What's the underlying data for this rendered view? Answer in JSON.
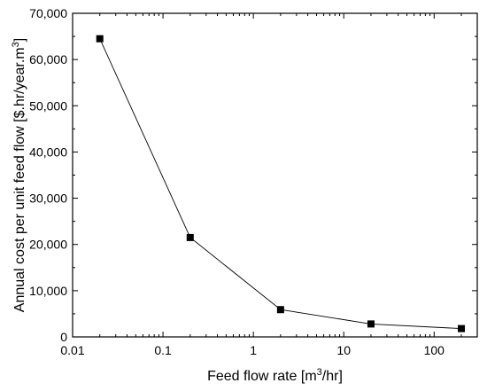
{
  "chart_data": {
    "type": "line",
    "x_scale": "log",
    "x": [
      0.02,
      0.2,
      2,
      20,
      200
    ],
    "series": [
      {
        "values": [
          64500,
          21500,
          5900,
          2800,
          1800
        ]
      }
    ],
    "marker": "square",
    "color": "#000000",
    "xlabel": {
      "main": "Feed flow rate [m",
      "sup": "3",
      "tail": "/hr]"
    },
    "ylabel": {
      "main": "Annual cost per unit feed flow [$.hr/year.m",
      "sup": "3",
      "tail": "]"
    },
    "xlim": [
      0.01,
      300
    ],
    "ylim": [
      0,
      70000
    ],
    "x_ticks": [
      {
        "value": 0.01,
        "label": "0.01"
      },
      {
        "value": 0.1,
        "label": "0.1"
      },
      {
        "value": 1,
        "label": "1"
      },
      {
        "value": 10,
        "label": "10"
      },
      {
        "value": 100,
        "label": "100"
      }
    ],
    "y_ticks": [
      {
        "value": 0,
        "label": "0"
      },
      {
        "value": 10000,
        "label": "10,000"
      },
      {
        "value": 20000,
        "label": "20,000"
      },
      {
        "value": 30000,
        "label": "30,000"
      },
      {
        "value": 40000,
        "label": "40,000"
      },
      {
        "value": 50000,
        "label": "50,000"
      },
      {
        "value": 60000,
        "label": "60,000"
      },
      {
        "value": 70000,
        "label": "70,000"
      }
    ],
    "grid": false,
    "legend": "none"
  }
}
